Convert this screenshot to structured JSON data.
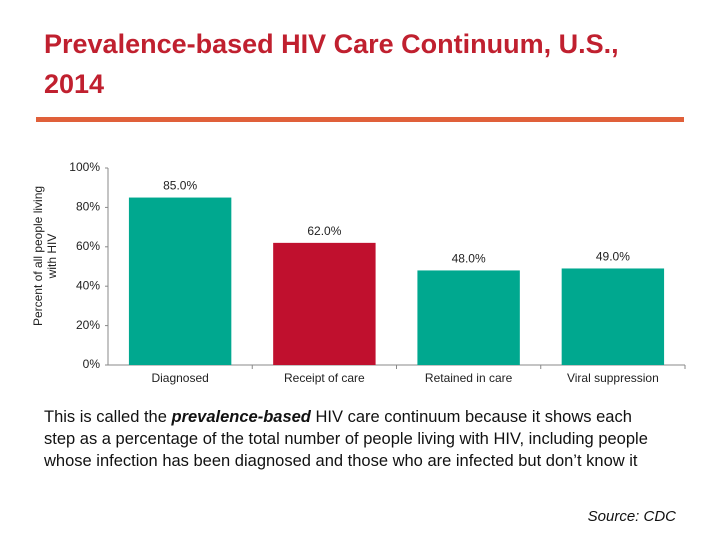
{
  "header": {
    "title": "Prevalence-based HIV Care Continuum, U.S., 2014"
  },
  "chart_data": {
    "type": "bar",
    "ylabel": "Percent of all people living with HIV",
    "categories": [
      "Diagnosed",
      "Receipt of care",
      "Retained in care",
      "Viral suppression"
    ],
    "values": [
      85.0,
      62.0,
      48.0,
      49.0
    ],
    "value_labels": [
      "85.0%",
      "62.0%",
      "48.0%",
      "49.0%"
    ],
    "colors": [
      "#00a88f",
      "#c0102e",
      "#00a88f",
      "#00a88f"
    ],
    "ylim": [
      0,
      100
    ],
    "yticks": [
      {
        "value": 0,
        "label": "0%"
      },
      {
        "value": 20,
        "label": "20%"
      },
      {
        "value": 40,
        "label": "40%"
      },
      {
        "value": 60,
        "label": "60%"
      },
      {
        "value": 80,
        "label": "80%"
      },
      {
        "value": 100,
        "label": "100%"
      }
    ],
    "grid": false
  },
  "body": {
    "parts": [
      "This is called the ",
      "prevalence-based",
      " HIV care continuum because it shows each step as a percentage of the total number of people living with HIV, including people whose infection has been diagnosed and those who are infected but don’t know it"
    ],
    "source": "Source: CDC"
  }
}
